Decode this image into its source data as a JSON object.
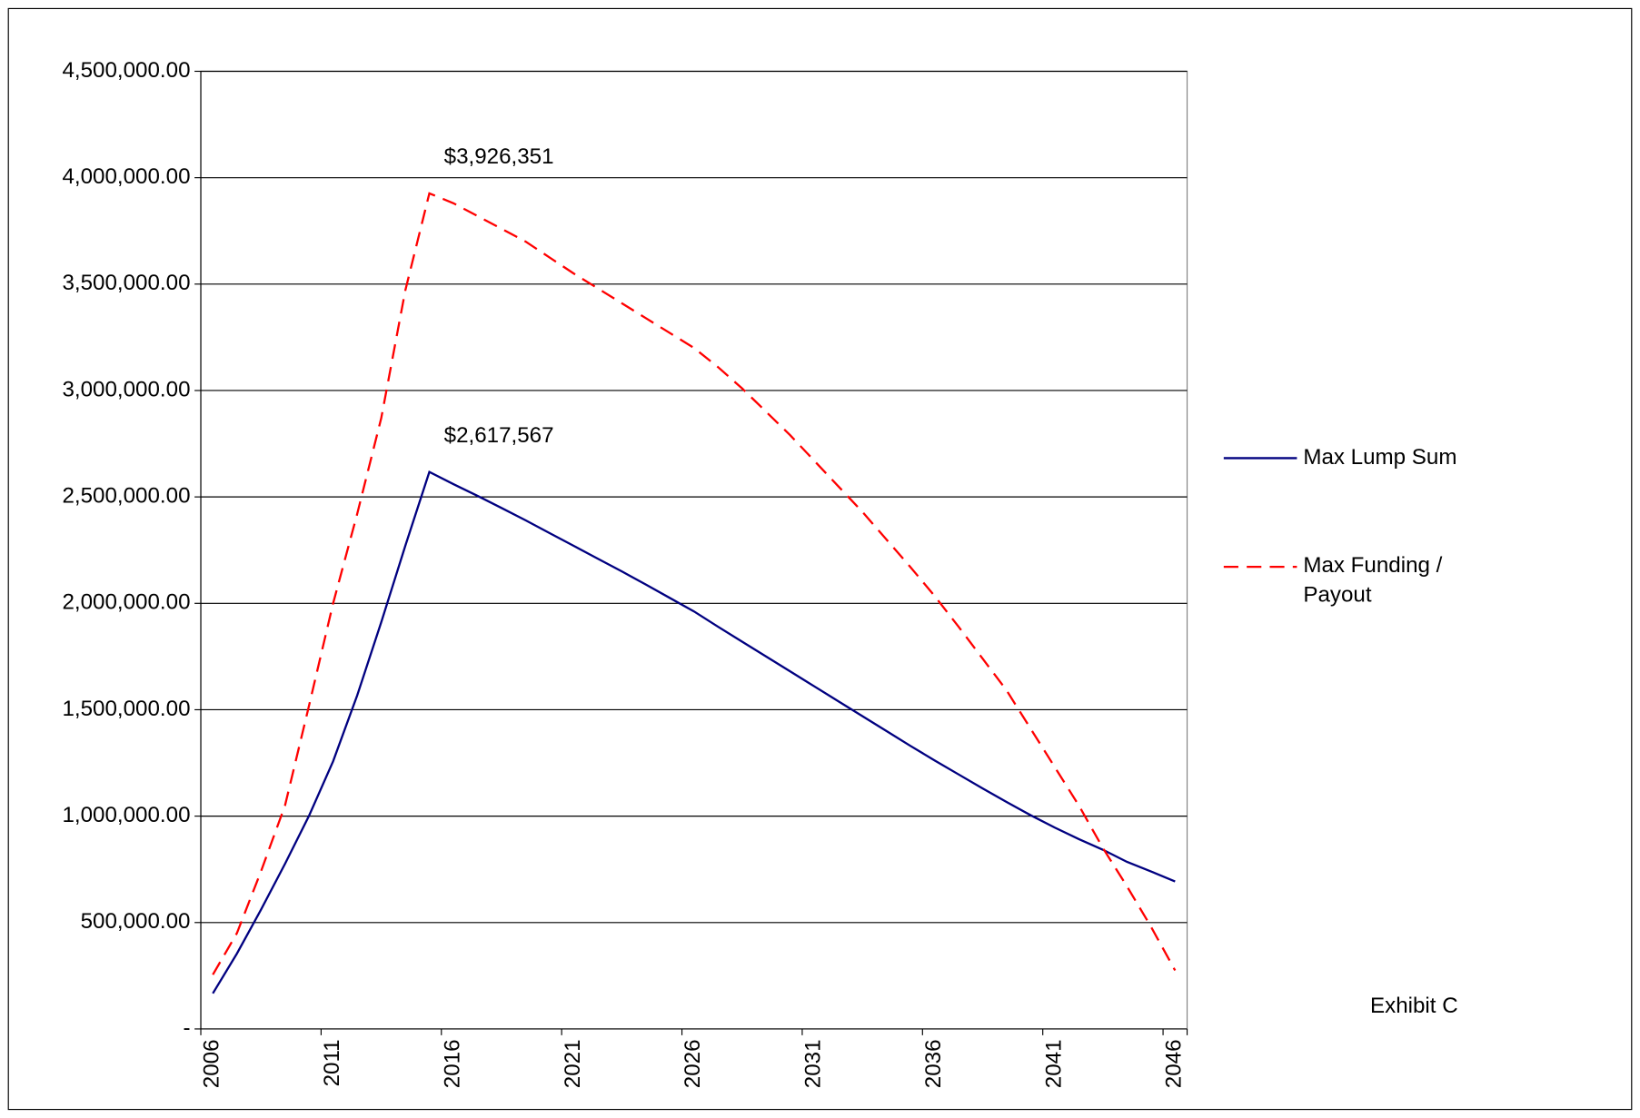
{
  "chart_data": {
    "type": "line",
    "categories": [
      "2006",
      null,
      null,
      null,
      null,
      "2011",
      null,
      null,
      null,
      null,
      "2016",
      null,
      null,
      null,
      null,
      "2021",
      null,
      null,
      null,
      null,
      "2026",
      null,
      null,
      null,
      null,
      "2031",
      null,
      null,
      null,
      null,
      "2036",
      null,
      null,
      null,
      null,
      "2041",
      null,
      null,
      null,
      null,
      "2046"
    ],
    "series": [
      {
        "name": "Max Lump Sum",
        "color": "#000080",
        "dash": false,
        "values": [
          167000,
          354000,
          560000,
          776000,
          1002000,
          1258000,
          1567000,
          1911000,
          2270000,
          2617567,
          2560000,
          2505000,
          2448000,
          2390000,
          2330000,
          2270000,
          2210000,
          2150000,
          2088000,
          2025000,
          1962000,
          1890000,
          1820000,
          1750000,
          1680000,
          1610000,
          1540000,
          1470000,
          1400000,
          1330000,
          1262000,
          1196000,
          1130000,
          1066000,
          1004000,
          946000,
          892000,
          842000,
          785000,
          740000,
          693000
        ],
        "value_labels": [
          null,
          null,
          null,
          null,
          null,
          null,
          null,
          null,
          null,
          "$2,617,567",
          null,
          null,
          null,
          null,
          null,
          null,
          null,
          null,
          null,
          null,
          null,
          null,
          null,
          null,
          null,
          null,
          null,
          null,
          null,
          null,
          null,
          null,
          null,
          null,
          null,
          null,
          null,
          null,
          null,
          null,
          null
        ]
      },
      {
        "name": "Max Funding / Payout",
        "color": "#ff0000",
        "dash": true,
        "values": [
          255000,
          450000,
          740000,
          1050000,
          1520000,
          2000000,
          2420000,
          2870000,
          3470000,
          3926351,
          3880000,
          3820000,
          3760000,
          3700000,
          3625000,
          3550000,
          3480000,
          3410000,
          3340000,
          3270000,
          3200000,
          3110000,
          3010000,
          2900000,
          2790000,
          2670000,
          2550000,
          2430000,
          2300000,
          2170000,
          2035000,
          1890000,
          1740000,
          1590000,
          1410000,
          1230000,
          1050000,
          850000,
          670000,
          480000,
          275000
        ],
        "value_labels": [
          null,
          null,
          null,
          null,
          null,
          null,
          null,
          null,
          null,
          "$3,926,351",
          null,
          null,
          null,
          null,
          null,
          null,
          null,
          null,
          null,
          null,
          null,
          null,
          null,
          null,
          null,
          null,
          null,
          null,
          null,
          null,
          null,
          null,
          null,
          null,
          null,
          null,
          null,
          null,
          null,
          null,
          null
        ]
      }
    ],
    "ylim": [
      0,
      4500000
    ],
    "yticks": [
      {
        "value": 0,
        "label": "-"
      },
      {
        "value": 500000,
        "label": "500,000.00"
      },
      {
        "value": 1000000,
        "label": "1,000,000.00"
      },
      {
        "value": 1500000,
        "label": "1,500,000.00"
      },
      {
        "value": 2000000,
        "label": "2,000,000.00"
      },
      {
        "value": 2500000,
        "label": "2,500,000.00"
      },
      {
        "value": 3000000,
        "label": "3,000,000.00"
      },
      {
        "value": 3500000,
        "label": "3,500,000.00"
      },
      {
        "value": 4000000,
        "label": "4,000,000.00"
      },
      {
        "value": 4500000,
        "label": "4,500,000.00"
      }
    ],
    "grid": true,
    "legend": "right",
    "annotation": "Exhibit C"
  }
}
